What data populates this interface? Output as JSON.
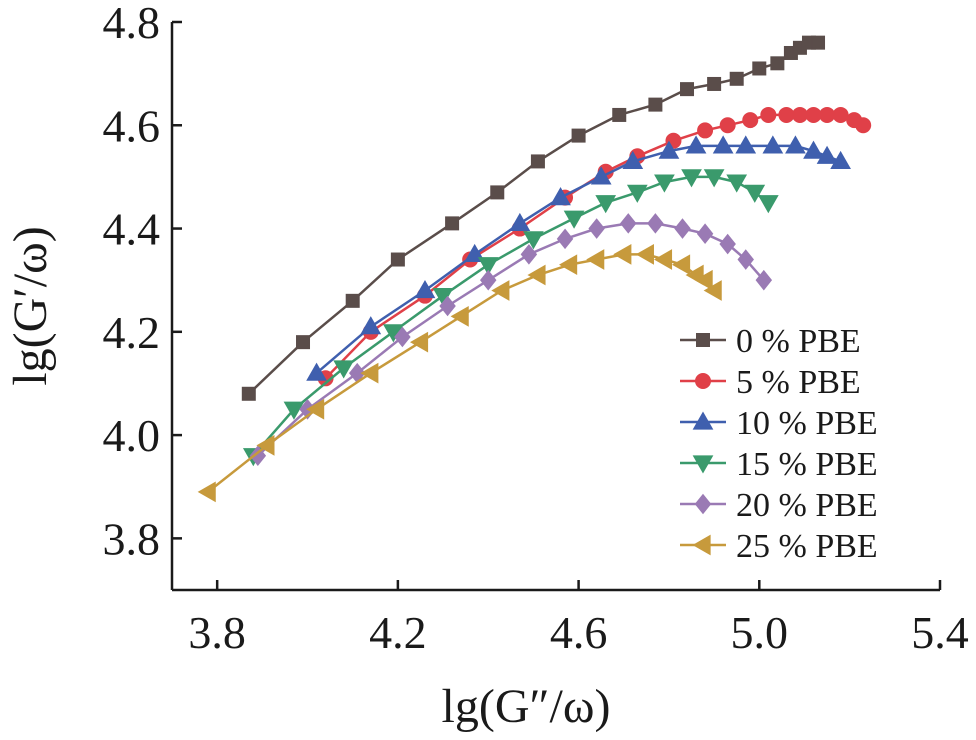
{
  "chart_data": {
    "type": "line",
    "xlabel": "lg(G″/ω)",
    "ylabel": "lg(G′/ω)",
    "xlim": [
      3.7,
      5.4
    ],
    "ylim": [
      3.7,
      4.8
    ],
    "xticks": [
      "3.8",
      "4.2",
      "4.6",
      "5.0",
      "5.4"
    ],
    "yticks": [
      "3.8",
      "4.0",
      "4.2",
      "4.4",
      "4.6",
      "4.8"
    ],
    "legend_position": "bottom-right",
    "grid": false,
    "series": [
      {
        "name": "0 % PBE",
        "color": "#5a4d4a",
        "marker": "square",
        "x": [
          3.87,
          3.99,
          4.1,
          4.2,
          4.32,
          4.42,
          4.51,
          4.6,
          4.69,
          4.77,
          4.84,
          4.9,
          4.95,
          5.0,
          5.04,
          5.07,
          5.09,
          5.11,
          5.13
        ],
        "y": [
          4.08,
          4.18,
          4.26,
          4.34,
          4.41,
          4.47,
          4.53,
          4.58,
          4.62,
          4.64,
          4.67,
          4.68,
          4.69,
          4.71,
          4.72,
          4.74,
          4.75,
          4.76,
          4.76
        ]
      },
      {
        "name": "5 % PBE",
        "color": "#e04048",
        "marker": "circle",
        "x": [
          4.04,
          4.14,
          4.26,
          4.36,
          4.47,
          4.57,
          4.66,
          4.73,
          4.81,
          4.88,
          4.93,
          4.98,
          5.02,
          5.06,
          5.09,
          5.12,
          5.15,
          5.18,
          5.21,
          5.23
        ],
        "y": [
          4.11,
          4.2,
          4.27,
          4.34,
          4.4,
          4.46,
          4.51,
          4.54,
          4.57,
          4.59,
          4.6,
          4.61,
          4.62,
          4.62,
          4.62,
          4.62,
          4.62,
          4.62,
          4.61,
          4.6
        ]
      },
      {
        "name": "10 % PBE",
        "color": "#3f5fae",
        "marker": "triangle-up",
        "x": [
          4.02,
          4.14,
          4.26,
          4.37,
          4.47,
          4.56,
          4.65,
          4.72,
          4.8,
          4.86,
          4.92,
          4.97,
          5.03,
          5.08,
          5.12,
          5.15,
          5.18
        ],
        "y": [
          4.12,
          4.21,
          4.28,
          4.35,
          4.41,
          4.46,
          4.5,
          4.53,
          4.55,
          4.56,
          4.56,
          4.56,
          4.56,
          4.56,
          4.55,
          4.54,
          4.53
        ]
      },
      {
        "name": "15 % PBE",
        "color": "#3a9a6c",
        "marker": "triangle-down",
        "x": [
          3.88,
          3.97,
          4.08,
          4.19,
          4.3,
          4.4,
          4.5,
          4.59,
          4.66,
          4.73,
          4.79,
          4.85,
          4.9,
          4.95,
          4.99,
          5.02
        ],
        "y": [
          3.96,
          4.05,
          4.13,
          4.2,
          4.27,
          4.33,
          4.38,
          4.42,
          4.45,
          4.47,
          4.49,
          4.5,
          4.5,
          4.49,
          4.47,
          4.45
        ]
      },
      {
        "name": "20 % PBE",
        "color": "#9a7ab4",
        "marker": "diamond",
        "x": [
          3.89,
          4.0,
          4.11,
          4.21,
          4.31,
          4.4,
          4.49,
          4.57,
          4.64,
          4.71,
          4.77,
          4.83,
          4.88,
          4.93,
          4.97,
          5.01
        ],
        "y": [
          3.96,
          4.05,
          4.12,
          4.19,
          4.25,
          4.3,
          4.35,
          4.38,
          4.4,
          4.41,
          4.41,
          4.4,
          4.39,
          4.37,
          4.34,
          4.3
        ]
      },
      {
        "name": "25 % PBE",
        "color": "#c79a3c",
        "marker": "triangle-left",
        "x": [
          3.78,
          3.91,
          4.02,
          4.14,
          4.25,
          4.34,
          4.43,
          4.51,
          4.58,
          4.64,
          4.7,
          4.75,
          4.79,
          4.83,
          4.86,
          4.88,
          4.9
        ],
        "y": [
          3.89,
          3.98,
          4.05,
          4.12,
          4.18,
          4.23,
          4.28,
          4.31,
          4.33,
          4.34,
          4.35,
          4.35,
          4.34,
          4.33,
          4.31,
          4.3,
          4.28
        ]
      }
    ]
  }
}
